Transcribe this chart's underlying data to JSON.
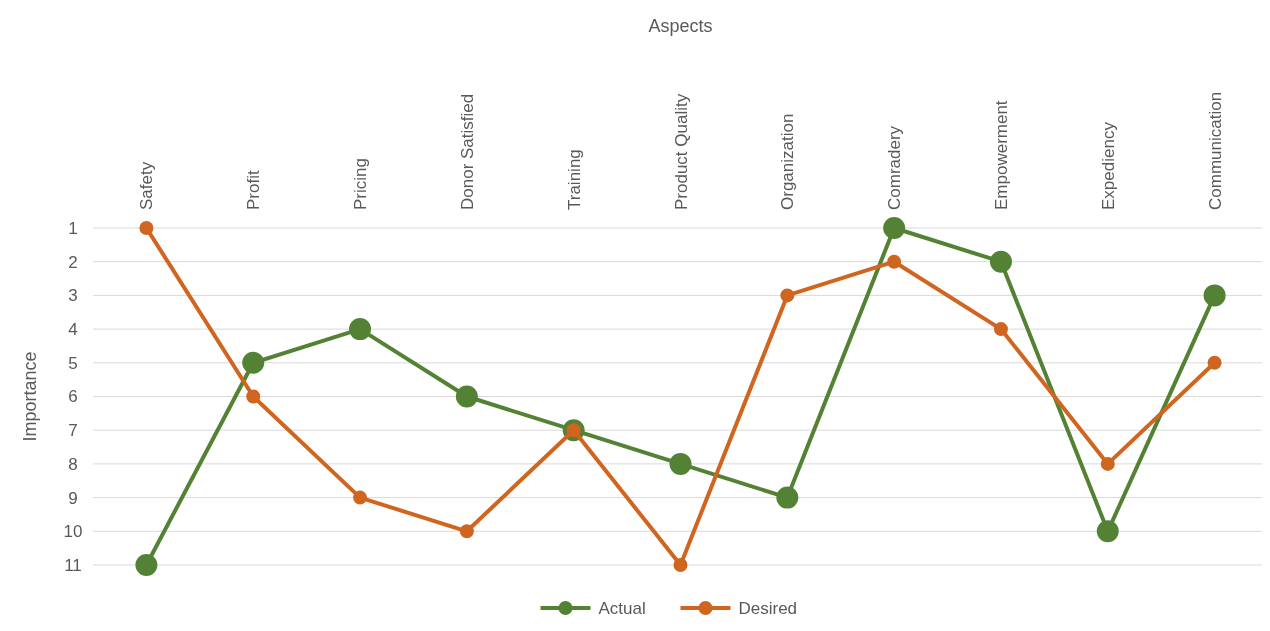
{
  "chart_data": {
    "type": "line",
    "xlabel": "Aspects",
    "ylabel": "Importance",
    "categories": [
      "Safety",
      "Profit",
      "Pricing",
      "Donor Satisfied",
      "Training",
      "Product Quality",
      "Organization",
      "Comradery",
      "Empowerment",
      "Expediency",
      "Communication"
    ],
    "series": [
      {
        "name": "Actual",
        "color": "#548235",
        "values": [
          11,
          5,
          4,
          6,
          7,
          8,
          9,
          1,
          2,
          10,
          3
        ]
      },
      {
        "name": "Desired",
        "color": "#d0651f",
        "values": [
          1,
          6,
          9,
          10,
          7,
          11,
          3,
          2,
          4,
          8,
          5
        ]
      }
    ],
    "ylim": [
      11,
      1
    ],
    "yticks": [
      1,
      2,
      3,
      4,
      5,
      6,
      7,
      8,
      9,
      10,
      11
    ],
    "grid": "y",
    "legend": "bottom",
    "marker": "circle",
    "line_style": "solid"
  }
}
